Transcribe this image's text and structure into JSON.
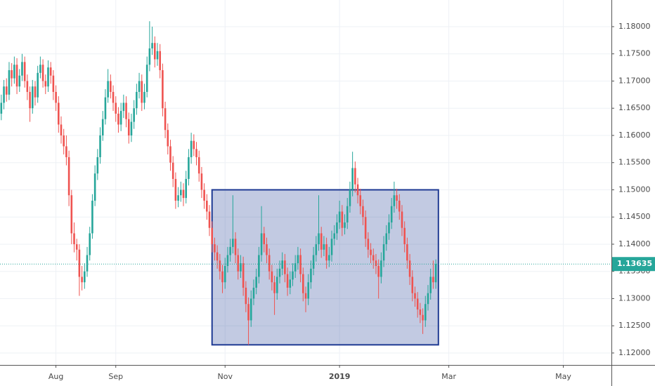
{
  "chart_data": {
    "type": "candlestick",
    "up_color": "#26a69a",
    "down_color": "#ef5350",
    "grid": true,
    "xlim": [
      -0.5,
      234.5
    ],
    "xticks": [
      {
        "value": 21,
        "label": "Aug"
      },
      {
        "value": 44,
        "label": "Sep"
      },
      {
        "value": 86,
        "label": "Nov"
      },
      {
        "value": 130,
        "label": "2019"
      },
      {
        "value": 172,
        "label": "Mar"
      },
      {
        "value": 216,
        "label": "May"
      }
    ],
    "ylim": [
      1.1178,
      1.1849
    ],
    "yticks": [
      {
        "value": 1.12,
        "label": "1.12000"
      },
      {
        "value": 1.125,
        "label": "1.12500"
      },
      {
        "value": 1.13,
        "label": "1.13000"
      },
      {
        "value": 1.135,
        "label": "1.13500"
      },
      {
        "value": 1.14,
        "label": "1.14000"
      },
      {
        "value": 1.145,
        "label": "1.14500"
      },
      {
        "value": 1.15,
        "label": "1.15000"
      },
      {
        "value": 1.155,
        "label": "1.15500"
      },
      {
        "value": 1.16,
        "label": "1.16000"
      },
      {
        "value": 1.165,
        "label": "1.16500"
      },
      {
        "value": 1.17,
        "label": "1.17000"
      },
      {
        "value": 1.175,
        "label": "1.17500"
      },
      {
        "value": 1.18,
        "label": "1.18000"
      }
    ],
    "last_price": 1.13635,
    "rectangle": {
      "top": 1.15,
      "bottom": 1.1215,
      "start": 81,
      "end": 168,
      "color": "#1f3a93"
    },
    "open": [
      1.164,
      1.166,
      1.169,
      1.1675,
      1.172,
      1.1705,
      1.173,
      1.169,
      1.171,
      1.1735,
      1.17,
      1.168,
      1.165,
      1.169,
      1.167,
      1.1715,
      1.173,
      1.17,
      1.169,
      1.1725,
      1.171,
      1.168,
      1.166,
      1.162,
      1.16,
      1.158,
      1.156,
      1.149,
      1.142,
      1.14,
      1.139,
      1.134,
      1.133,
      1.135,
      1.138,
      1.142,
      1.148,
      1.153,
      1.156,
      1.16,
      1.163,
      1.167,
      1.17,
      1.168,
      1.166,
      1.164,
      1.162,
      1.1645,
      1.166,
      1.163,
      1.16,
      1.1625,
      1.165,
      1.168,
      1.17,
      1.166,
      1.168,
      1.173,
      1.176,
      1.177,
      1.174,
      1.1755,
      1.172,
      1.165,
      1.161,
      1.158,
      1.155,
      1.152,
      1.148,
      1.149,
      1.15,
      1.1485,
      1.152,
      1.156,
      1.159,
      1.1575,
      1.156,
      1.153,
      1.15,
      1.148,
      1.146,
      1.143,
      1.14,
      1.1385,
      1.137,
      1.135,
      1.133,
      1.136,
      1.138,
      1.1395,
      1.141,
      1.138,
      1.135,
      1.1365,
      1.132,
      1.129,
      1.126,
      1.13,
      1.132,
      1.134,
      1.138,
      1.142,
      1.14,
      1.138,
      1.135,
      1.133,
      1.131,
      1.134,
      1.1355,
      1.137,
      1.1345,
      1.132,
      1.1335,
      1.135,
      1.1365,
      1.138,
      1.1345,
      1.131,
      1.13,
      1.133,
      1.1355,
      1.138,
      1.14,
      1.142,
      1.139,
      1.14,
      1.137,
      1.138,
      1.141,
      1.142,
      1.144,
      1.146,
      1.143,
      1.144,
      1.147,
      1.15,
      1.154,
      1.151,
      1.149,
      1.147,
      1.145,
      1.141,
      1.139,
      1.138,
      1.137,
      1.136,
      1.134,
      1.137,
      1.14,
      1.142,
      1.144,
      1.147,
      1.149,
      1.148,
      1.146,
      1.143,
      1.14,
      1.137,
      1.134,
      1.131,
      1.13,
      1.128,
      1.127,
      1.126,
      1.129,
      1.131,
      1.134,
      1.133
    ],
    "high": [
      1.1675,
      1.1702,
      1.1705,
      1.1735,
      1.1733,
      1.1745,
      1.1742,
      1.1722,
      1.175,
      1.1745,
      1.1712,
      1.169,
      1.1702,
      1.17,
      1.1728,
      1.1745,
      1.174,
      1.1712,
      1.1738,
      1.1735,
      1.172,
      1.1692,
      1.1672,
      1.1635,
      1.1612,
      1.16,
      1.1572,
      1.15,
      1.144,
      1.141,
      1.14,
      1.136,
      1.1365,
      1.1395,
      1.1432,
      1.1492,
      1.1545,
      1.1575,
      1.1615,
      1.1645,
      1.1685,
      1.1722,
      1.1712,
      1.1692,
      1.1672,
      1.1652,
      1.166,
      1.1675,
      1.1672,
      1.1642,
      1.164,
      1.1665,
      1.1695,
      1.1715,
      1.1712,
      1.1695,
      1.1745,
      1.181,
      1.18,
      1.1782,
      1.177,
      1.1768,
      1.1732,
      1.1662,
      1.1622,
      1.1592,
      1.1562,
      1.1532,
      1.1505,
      1.1515,
      1.1512,
      1.1535,
      1.1575,
      1.1605,
      1.1602,
      1.1588,
      1.1572,
      1.1542,
      1.1512,
      1.1492,
      1.1472,
      1.1442,
      1.1412,
      1.1398,
      1.1382,
      1.1362,
      1.1375,
      1.1395,
      1.141,
      1.149,
      1.1422,
      1.1392,
      1.138,
      1.1377,
      1.1332,
      1.1302,
      1.1315,
      1.1335,
      1.1355,
      1.1395,
      1.147,
      1.1432,
      1.1412,
      1.1392,
      1.1362,
      1.1342,
      1.1355,
      1.137,
      1.1385,
      1.1382,
      1.1357,
      1.135,
      1.1365,
      1.138,
      1.1395,
      1.1392,
      1.1357,
      1.1322,
      1.1345,
      1.137,
      1.1395,
      1.1415,
      1.149,
      1.1432,
      1.1415,
      1.1412,
      1.1395,
      1.1425,
      1.1435,
      1.1455,
      1.148,
      1.1472,
      1.1455,
      1.1485,
      1.1515,
      1.157,
      1.1552,
      1.1522,
      1.1502,
      1.1482,
      1.1462,
      1.1422,
      1.1402,
      1.1392,
      1.1382,
      1.1372,
      1.1385,
      1.1415,
      1.1435,
      1.1455,
      1.1485,
      1.1515,
      1.1502,
      1.1492,
      1.1472,
      1.1442,
      1.1412,
      1.1382,
      1.1352,
      1.1322,
      1.1312,
      1.1292,
      1.1282,
      1.1305,
      1.1325,
      1.1355,
      1.137,
      1.1372
    ],
    "low": [
      1.1628,
      1.1648,
      1.1662,
      1.1665,
      1.169,
      1.1695,
      1.1676,
      1.168,
      1.17,
      1.1688,
      1.1665,
      1.1625,
      1.164,
      1.1655,
      1.166,
      1.1705,
      1.1688,
      1.1676,
      1.168,
      1.1695,
      1.1665,
      1.1645,
      1.1605,
      1.1585,
      1.1565,
      1.1545,
      1.147,
      1.14,
      1.1385,
      1.137,
      1.1305,
      1.1315,
      1.1318,
      1.134,
      1.137,
      1.141,
      1.147,
      1.1518,
      1.1548,
      1.159,
      1.162,
      1.166,
      1.1668,
      1.1645,
      1.1625,
      1.1605,
      1.1608,
      1.1632,
      1.1615,
      1.1585,
      1.1588,
      1.1612,
      1.1638,
      1.1668,
      1.1645,
      1.1648,
      1.167,
      1.1718,
      1.1748,
      1.1725,
      1.1728,
      1.1705,
      1.1635,
      1.1595,
      1.1565,
      1.1535,
      1.1505,
      1.1465,
      1.1468,
      1.1478,
      1.147,
      1.1475,
      1.1508,
      1.1548,
      1.1562,
      1.1545,
      1.1515,
      1.1485,
      1.1465,
      1.1445,
      1.1415,
      1.1385,
      1.137,
      1.1355,
      1.1335,
      1.131,
      1.1318,
      1.1348,
      1.1368,
      1.1383,
      1.1365,
      1.1335,
      1.1338,
      1.1305,
      1.1275,
      1.1215,
      1.1248,
      1.1288,
      1.1308,
      1.1328,
      1.1368,
      1.1385,
      1.1365,
      1.1335,
      1.1315,
      1.127,
      1.1298,
      1.1328,
      1.1343,
      1.133,
      1.1305,
      1.1308,
      1.1323,
      1.1338,
      1.1353,
      1.133,
      1.1295,
      1.1275,
      1.1288,
      1.1318,
      1.1343,
      1.1368,
      1.1388,
      1.1375,
      1.1378,
      1.1355,
      1.1358,
      1.1368,
      1.1398,
      1.1408,
      1.1428,
      1.1415,
      1.1418,
      1.1428,
      1.1458,
      1.1488,
      1.1495,
      1.1475,
      1.1455,
      1.1435,
      1.1395,
      1.1375,
      1.1365,
      1.1355,
      1.1345,
      1.13,
      1.1328,
      1.1358,
      1.1388,
      1.1408,
      1.1428,
      1.1458,
      1.1465,
      1.1445,
      1.1415,
      1.1385,
      1.1355,
      1.1325,
      1.1295,
      1.1285,
      1.1265,
      1.1255,
      1.1235,
      1.1248,
      1.1278,
      1.1298,
      1.1318,
      1.1318
    ],
    "close": [
      1.166,
      1.169,
      1.1675,
      1.172,
      1.1705,
      1.173,
      1.169,
      1.171,
      1.1735,
      1.17,
      1.168,
      1.165,
      1.169,
      1.167,
      1.1715,
      1.173,
      1.17,
      1.169,
      1.1725,
      1.171,
      1.168,
      1.166,
      1.162,
      1.16,
      1.158,
      1.156,
      1.149,
      1.142,
      1.14,
      1.139,
      1.134,
      1.133,
      1.135,
      1.138,
      1.142,
      1.148,
      1.153,
      1.156,
      1.16,
      1.163,
      1.167,
      1.17,
      1.168,
      1.166,
      1.164,
      1.162,
      1.1645,
      1.166,
      1.163,
      1.16,
      1.1625,
      1.165,
      1.168,
      1.17,
      1.166,
      1.168,
      1.173,
      1.176,
      1.177,
      1.174,
      1.1755,
      1.172,
      1.165,
      1.161,
      1.158,
      1.155,
      1.152,
      1.148,
      1.149,
      1.15,
      1.1485,
      1.152,
      1.156,
      1.159,
      1.1575,
      1.156,
      1.153,
      1.15,
      1.148,
      1.146,
      1.143,
      1.14,
      1.1385,
      1.137,
      1.135,
      1.133,
      1.136,
      1.138,
      1.1395,
      1.141,
      1.138,
      1.135,
      1.1365,
      1.132,
      1.129,
      1.126,
      1.13,
      1.132,
      1.134,
      1.138,
      1.142,
      1.14,
      1.138,
      1.135,
      1.133,
      1.131,
      1.134,
      1.1355,
      1.137,
      1.1345,
      1.132,
      1.1335,
      1.135,
      1.1365,
      1.138,
      1.1345,
      1.131,
      1.13,
      1.133,
      1.1355,
      1.138,
      1.14,
      1.142,
      1.139,
      1.14,
      1.137,
      1.138,
      1.141,
      1.142,
      1.144,
      1.146,
      1.143,
      1.144,
      1.147,
      1.15,
      1.154,
      1.151,
      1.149,
      1.147,
      1.145,
      1.141,
      1.139,
      1.138,
      1.137,
      1.136,
      1.134,
      1.137,
      1.14,
      1.142,
      1.144,
      1.147,
      1.149,
      1.148,
      1.146,
      1.143,
      1.14,
      1.137,
      1.134,
      1.131,
      1.13,
      1.128,
      1.127,
      1.126,
      1.129,
      1.131,
      1.134,
      1.133,
      1.13635
    ]
  }
}
